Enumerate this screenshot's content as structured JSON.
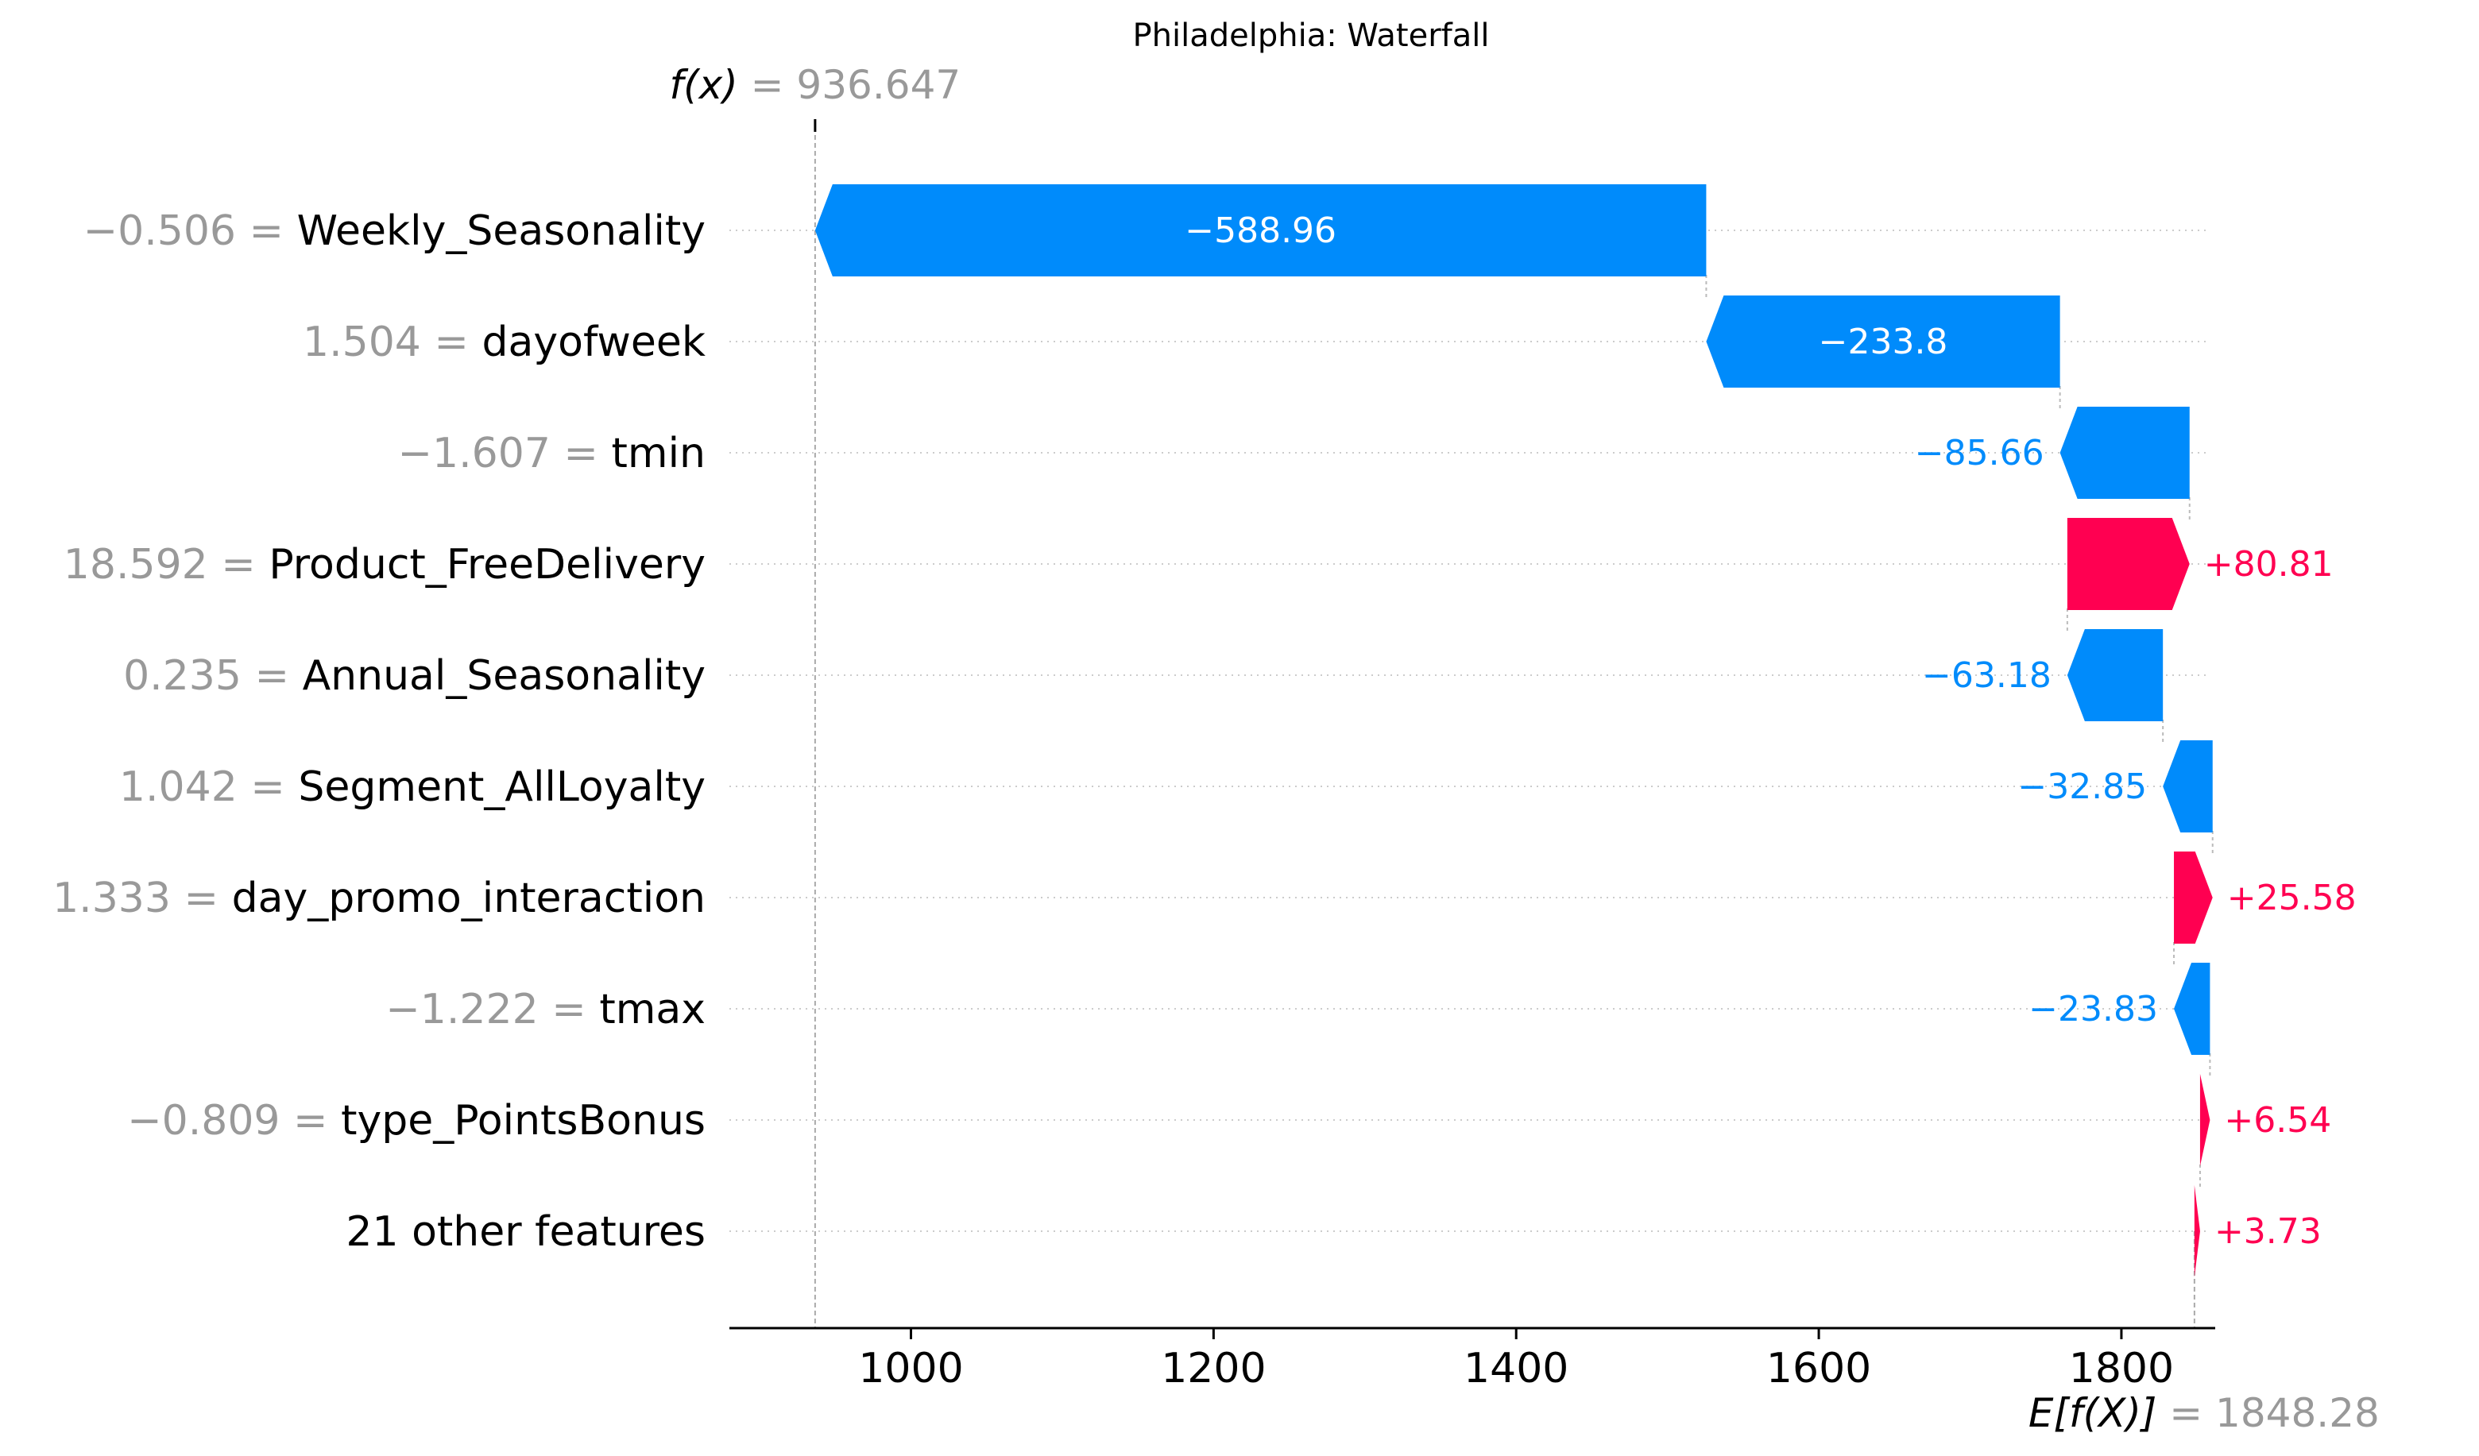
{
  "chart_data": {
    "type": "waterfall",
    "title": "Philadelphia: Waterfall",
    "fx": {
      "label": "f(x)",
      "value_text": "= 936.647",
      "value": 936.647
    },
    "base": {
      "label": "E[f(X)]",
      "value_text": "= 1848.28",
      "value": 1848.28
    },
    "xlim": [
      880,
      1862
    ],
    "xticks": [
      1000,
      1200,
      1400,
      1600,
      1800
    ],
    "xtick_labels": [
      "1000",
      "1200",
      "1400",
      "1600",
      "1800"
    ],
    "grid": "horizontal dotted",
    "colors": {
      "positive": "#ff0051",
      "negative": "#008bfb",
      "value_gray": "#999999",
      "label": "#000000"
    },
    "features": [
      {
        "value_text": "−0.506 =",
        "name": "Weekly_Seasonality",
        "contrib": -588.96,
        "contrib_label": "−588.96"
      },
      {
        "value_text": "1.504 =",
        "name": "dayofweek",
        "contrib": -233.8,
        "contrib_label": "−233.8"
      },
      {
        "value_text": "−1.607 =",
        "name": "tmin",
        "contrib": -85.66,
        "contrib_label": "−85.66"
      },
      {
        "value_text": "18.592 =",
        "name": "Product_FreeDelivery",
        "contrib": 80.81,
        "contrib_label": "+80.81"
      },
      {
        "value_text": "0.235 =",
        "name": "Annual_Seasonality",
        "contrib": -63.18,
        "contrib_label": "−63.18"
      },
      {
        "value_text": "1.042 =",
        "name": "Segment_AllLoyalty",
        "contrib": -32.85,
        "contrib_label": "−32.85"
      },
      {
        "value_text": "1.333 =",
        "name": "day_promo_interaction",
        "contrib": 25.58,
        "contrib_label": "+25.58"
      },
      {
        "value_text": "−1.222 =",
        "name": "tmax",
        "contrib": -23.83,
        "contrib_label": "−23.83"
      },
      {
        "value_text": "−0.809 =",
        "name": "type_PointsBonus",
        "contrib": 6.54,
        "contrib_label": "+6.54"
      },
      {
        "value_text": "",
        "name": "21 other features",
        "contrib": 3.73,
        "contrib_label": "+3.73"
      }
    ]
  }
}
